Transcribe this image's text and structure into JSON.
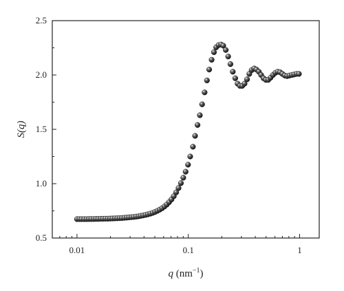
{
  "chart_data": {
    "type": "scatter",
    "xscale": "log",
    "xlim": [
      0.006,
      1.5
    ],
    "ylim": [
      0.5,
      2.5
    ],
    "ylabel": "S(q)",
    "xlabel": {
      "var": "q",
      "unit_base": " (nm",
      "unit_exp": "−1",
      "unit_close": ")"
    },
    "xticks": [
      {
        "value": 0.01,
        "label": "0.01"
      },
      {
        "value": 0.1,
        "label": "0.1"
      },
      {
        "value": 1,
        "label": "1"
      }
    ],
    "yticks": [
      {
        "value": 0.5,
        "label": "0.5"
      },
      {
        "value": 1.0,
        "label": "1.0"
      },
      {
        "value": 1.5,
        "label": "1.5"
      },
      {
        "value": 2.0,
        "label": "2.0"
      },
      {
        "value": 2.5,
        "label": "2.5"
      }
    ],
    "grid": false,
    "marker_color": "#1a1a1a",
    "x": [
      0.01,
      0.0105,
      0.011,
      0.0116,
      0.0122,
      0.0128,
      0.0134,
      0.0141,
      0.0148,
      0.0155,
      0.0163,
      0.0171,
      0.018,
      0.0189,
      0.0198,
      0.0208,
      0.0219,
      0.023,
      0.0241,
      0.0253,
      0.0266,
      0.0279,
      0.0293,
      0.0308,
      0.0323,
      0.034,
      0.0357,
      0.0374,
      0.0393,
      0.0413,
      0.0433,
      0.0455,
      0.0478,
      0.0502,
      0.0527,
      0.0553,
      0.0581,
      0.061,
      0.064,
      0.0672,
      0.0706,
      0.0741,
      0.0778,
      0.0817,
      0.0858,
      0.0901,
      0.0946,
      0.0994,
      0.104,
      0.11,
      0.115,
      0.121,
      0.127,
      0.133,
      0.14,
      0.147,
      0.154,
      0.162,
      0.17,
      0.178,
      0.187,
      0.197,
      0.206,
      0.217,
      0.228,
      0.239,
      0.251,
      0.264,
      0.277,
      0.291,
      0.305,
      0.32,
      0.337,
      0.353,
      0.371,
      0.39,
      0.409,
      0.43,
      0.451,
      0.474,
      0.497,
      0.522,
      0.548,
      0.576,
      0.605,
      0.635,
      0.667,
      0.7,
      0.735,
      0.772,
      0.81,
      0.851,
      0.893,
      0.938,
      0.985
    ],
    "y": [
      0.674,
      0.674,
      0.674,
      0.674,
      0.674,
      0.675,
      0.675,
      0.675,
      0.676,
      0.676,
      0.677,
      0.677,
      0.678,
      0.678,
      0.679,
      0.68,
      0.681,
      0.682,
      0.683,
      0.684,
      0.686,
      0.688,
      0.69,
      0.692,
      0.694,
      0.697,
      0.7,
      0.704,
      0.708,
      0.713,
      0.718,
      0.724,
      0.731,
      0.74,
      0.75,
      0.761,
      0.774,
      0.79,
      0.808,
      0.83,
      0.855,
      0.885,
      0.92,
      0.96,
      1.005,
      1.055,
      1.11,
      1.175,
      1.25,
      1.34,
      1.44,
      1.54,
      1.63,
      1.73,
      1.84,
      1.95,
      2.05,
      2.14,
      2.21,
      2.255,
      2.275,
      2.28,
      2.27,
      2.23,
      2.17,
      2.1,
      2.03,
      1.97,
      1.92,
      1.9,
      1.9,
      1.92,
      1.96,
      2.01,
      2.045,
      2.06,
      2.05,
      2.03,
      2.0,
      1.97,
      1.955,
      1.955,
      1.975,
      2.0,
      2.02,
      2.03,
      2.025,
      2.01,
      1.995,
      1.99,
      1.995,
      2.0,
      2.005,
      2.01,
      2.01
    ]
  }
}
